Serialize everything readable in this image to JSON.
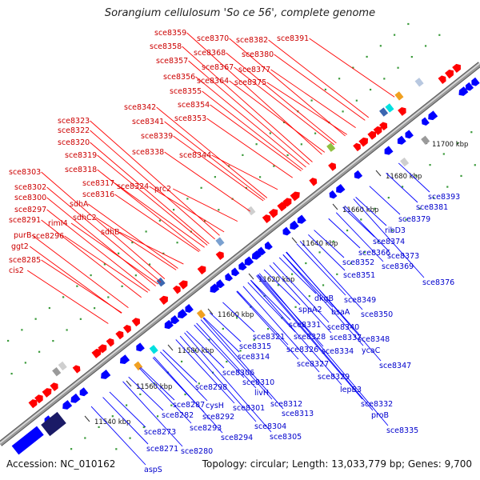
{
  "title": "Sorangium cellulosum 'So ce 56', complete genome",
  "footer": {
    "accession_label": "Accession:",
    "accession": "NC_010162",
    "topology": "Topology: circular; Length: 13,033,779 bp; Genes: 9,700"
  },
  "colors": {
    "backbone": "#9a9a9a",
    "forward_gene": "#ff0000",
    "reverse_gene": "#0000ff",
    "forward_label": "#cc0000",
    "reverse_label": "#0000cc",
    "dots": "#3a9a3a"
  },
  "scale_labels": [
    "11540 kbp",
    "11560 kbp",
    "11580 kbp",
    "11600 kbp",
    "11620 kbp",
    "11640 kbp",
    "11660 kbp",
    "11680 kbp",
    "11700 kbp"
  ],
  "forward_genes": [
    "sce8359",
    "sce8370",
    "sce8382",
    "sce8391",
    "sce8358",
    "sce8368",
    "sce8380",
    "sce8357",
    "sce8367",
    "sce8377",
    "sce8356",
    "sce8364",
    "sce8375",
    "sce8355",
    "sce8354",
    "sce8342",
    "sce8353",
    "sce8323",
    "sce8341",
    "sce8322",
    "sce8339",
    "sce8320",
    "sce8338",
    "sce8344",
    "sce8319",
    "sce8318",
    "sce8303",
    "sce8317",
    "sce8324",
    "sce8302",
    "sce8316",
    "prc2",
    "sce8300",
    "sdhA",
    "sce8297",
    "sdhC2",
    "sce8291",
    "rimI4",
    "sdhB",
    "purB",
    "sce8296",
    "ggt2",
    "sce8285",
    "cis2"
  ],
  "reverse_genes": [
    "sce8393",
    "sce8381",
    "sce8379",
    "ribD3",
    "sce8374",
    "sce8366",
    "sce8373",
    "sce8369",
    "sce8352",
    "sce8351",
    "sce8376",
    "dkgB",
    "sce8349",
    "sppA2",
    "bsaA",
    "sce8350",
    "sce8331",
    "sce8340",
    "sce8321",
    "sce8328",
    "sce8337",
    "sce8348",
    "sce8315",
    "sce8326",
    "sce8334",
    "ycaC",
    "sce8314",
    "sce8327",
    "sce8347",
    "sce8306",
    "sce8329",
    "sce8310",
    "livH",
    "lepB3",
    "sce8298",
    "sce8301",
    "sce8312",
    "sce8287",
    "cysH",
    "sce8313",
    "sce8332",
    "sce8282",
    "sce8292",
    "proB",
    "sce8293",
    "sce8304",
    "sce8335",
    "sce8294",
    "sce8305",
    "sce8273",
    "sce8280",
    "sce8271",
    "aspS"
  ]
}
